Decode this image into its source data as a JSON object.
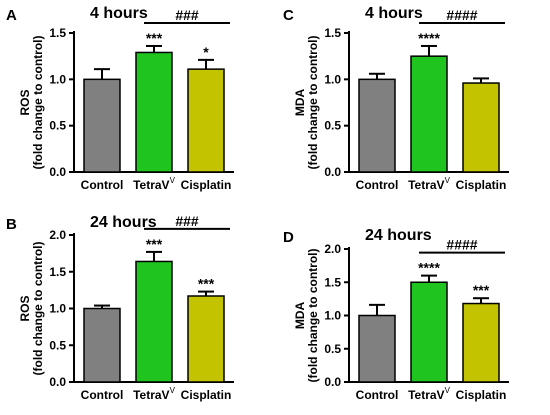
{
  "chart_data": [
    {
      "type": "bar",
      "panel": "A",
      "title": "4 hours",
      "ylabel_line1": "ROS",
      "ylabel_line2": "(fold change to control)",
      "ylim": [
        0,
        1.5
      ],
      "yticks": [
        "0.0",
        "0.5",
        "1.0",
        "1.5"
      ],
      "yticks_values": [
        0,
        0.5,
        1.0,
        1.5
      ],
      "categories": [
        {
          "name": "Control",
          "sup": ""
        },
        {
          "name": "TetraV",
          "sup": "V"
        },
        {
          "name": "Cisplatin",
          "sup": ""
        }
      ],
      "values": [
        1.0,
        1.29,
        1.11
      ],
      "errors": [
        0.11,
        0.07,
        0.1
      ],
      "significance": [
        "",
        "***",
        "*"
      ],
      "bracket": {
        "from": 1,
        "to": 2,
        "label": "###"
      }
    },
    {
      "type": "bar",
      "panel": "C",
      "title": "4 hours",
      "ylabel_line1": "MDA",
      "ylabel_line2": "(fold change to control)",
      "ylim": [
        0,
        1.5
      ],
      "yticks": [
        "0.0",
        "0.5",
        "1.0",
        "1.5"
      ],
      "yticks_values": [
        0,
        0.5,
        1.0,
        1.5
      ],
      "categories": [
        {
          "name": "Control",
          "sup": ""
        },
        {
          "name": "TetraV",
          "sup": "V"
        },
        {
          "name": "Cisplatin",
          "sup": ""
        }
      ],
      "values": [
        1.0,
        1.25,
        0.96
      ],
      "errors": [
        0.06,
        0.11,
        0.05
      ],
      "significance": [
        "",
        "****",
        ""
      ],
      "bracket": {
        "from": 1,
        "to": 2,
        "label": "####"
      }
    },
    {
      "type": "bar",
      "panel": "B",
      "title": "24 hours",
      "ylabel_line1": "ROS",
      "ylabel_line2": "(fold change to control)",
      "ylim": [
        0,
        2.0
      ],
      "yticks": [
        "0.0",
        "0.5",
        "1.0",
        "1.5",
        "2.0"
      ],
      "yticks_values": [
        0,
        0.5,
        1.0,
        1.5,
        2.0
      ],
      "categories": [
        {
          "name": "Control",
          "sup": ""
        },
        {
          "name": "TetraV",
          "sup": "V"
        },
        {
          "name": "Cisplatin",
          "sup": ""
        }
      ],
      "values": [
        1.0,
        1.64,
        1.17
      ],
      "errors": [
        0.04,
        0.13,
        0.06
      ],
      "significance": [
        "",
        "***",
        "***"
      ],
      "bracket": {
        "from": 1,
        "to": 2,
        "label": "###"
      }
    },
    {
      "type": "bar",
      "panel": "D",
      "title": "24 hours",
      "ylabel_line1": "MDA",
      "ylabel_line2": "(fold change to control)",
      "ylim": [
        0,
        2.0
      ],
      "yticks": [
        "0.0",
        "0.5",
        "1.0",
        "1.5",
        "2.0"
      ],
      "yticks_values": [
        0,
        0.5,
        1.0,
        1.5,
        2.0
      ],
      "categories": [
        {
          "name": "Control",
          "sup": ""
        },
        {
          "name": "TetraV",
          "sup": "V"
        },
        {
          "name": "Cisplatin",
          "sup": ""
        }
      ],
      "values": [
        1.0,
        1.5,
        1.18
      ],
      "errors": [
        0.16,
        0.1,
        0.08
      ],
      "significance": [
        "",
        "****",
        "***"
      ],
      "bracket": {
        "from": 1,
        "to": 2,
        "label": "####"
      }
    }
  ],
  "colors": {
    "control": "#808080",
    "tetrav": "#1fc41f",
    "cisplatin": "#c3c300"
  }
}
